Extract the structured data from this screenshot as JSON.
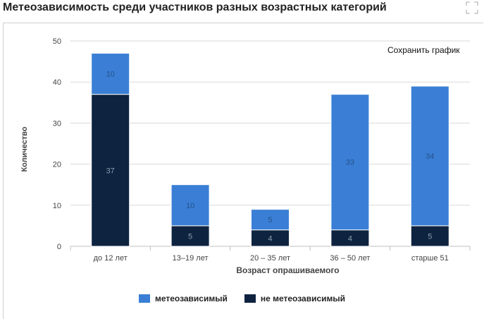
{
  "header": {
    "title": "Метеозависимость среди участников разных возрастных категорий",
    "save_label": "Сохранить график"
  },
  "colors": {
    "dependent": "#3a7fd5",
    "independent": "#0e2340",
    "grid": "#d9d9d9",
    "axis_text": "#444444"
  },
  "chart_data": {
    "type": "bar",
    "stacked": true,
    "title": "Метеозависимость среди участников разных возрастных категорий",
    "xlabel": "Возраст опрашиваемого",
    "ylabel": "Количество",
    "ylim": [
      0,
      50
    ],
    "yticks": [
      0,
      10,
      20,
      30,
      40,
      50
    ],
    "grid": true,
    "legend_position": "bottom",
    "categories": [
      "до 12 лет",
      "13–19 лет",
      "20 – 35 лет",
      "36 – 50 лет",
      "старше 51"
    ],
    "series": [
      {
        "name": "не метеозависимый",
        "values": [
          37,
          5,
          4,
          4,
          5
        ]
      },
      {
        "name": "метеозависимый",
        "values": [
          10,
          10,
          5,
          33,
          34
        ]
      }
    ]
  }
}
